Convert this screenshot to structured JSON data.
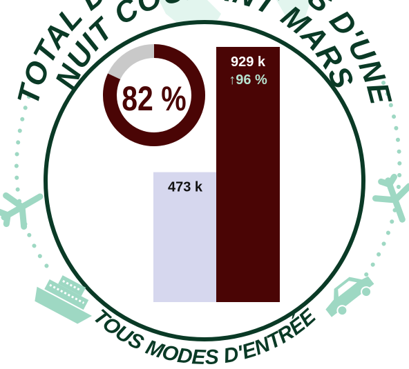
{
  "header": {
    "line1": "TOTAL DES TOURISTES D'UNE",
    "line2": "NUIT COURANT MARS"
  },
  "footer": {
    "label": "TOUS MODES D'ENTRÉE"
  },
  "donut": {
    "label": "82 %",
    "value": 82
  },
  "colors": {
    "ring": "#0a3a26",
    "dark_red": "#4a0505",
    "lavender": "#d6d7ee",
    "mint": "#9ed8c3",
    "donut_track": "#c9c9c9",
    "change_up": "#b6e2cf"
  },
  "icons": [
    "airplane-icon",
    "ship-icon",
    "car-icon",
    "dotted-path"
  ],
  "chart_data": {
    "type": "bar",
    "categories": [
      "",
      ""
    ],
    "values": [
      473,
      929
    ],
    "value_labels": [
      "473 k",
      "929 k"
    ],
    "change_label": "↑96 %",
    "ylim": [
      0,
      929
    ],
    "grid": false
  }
}
